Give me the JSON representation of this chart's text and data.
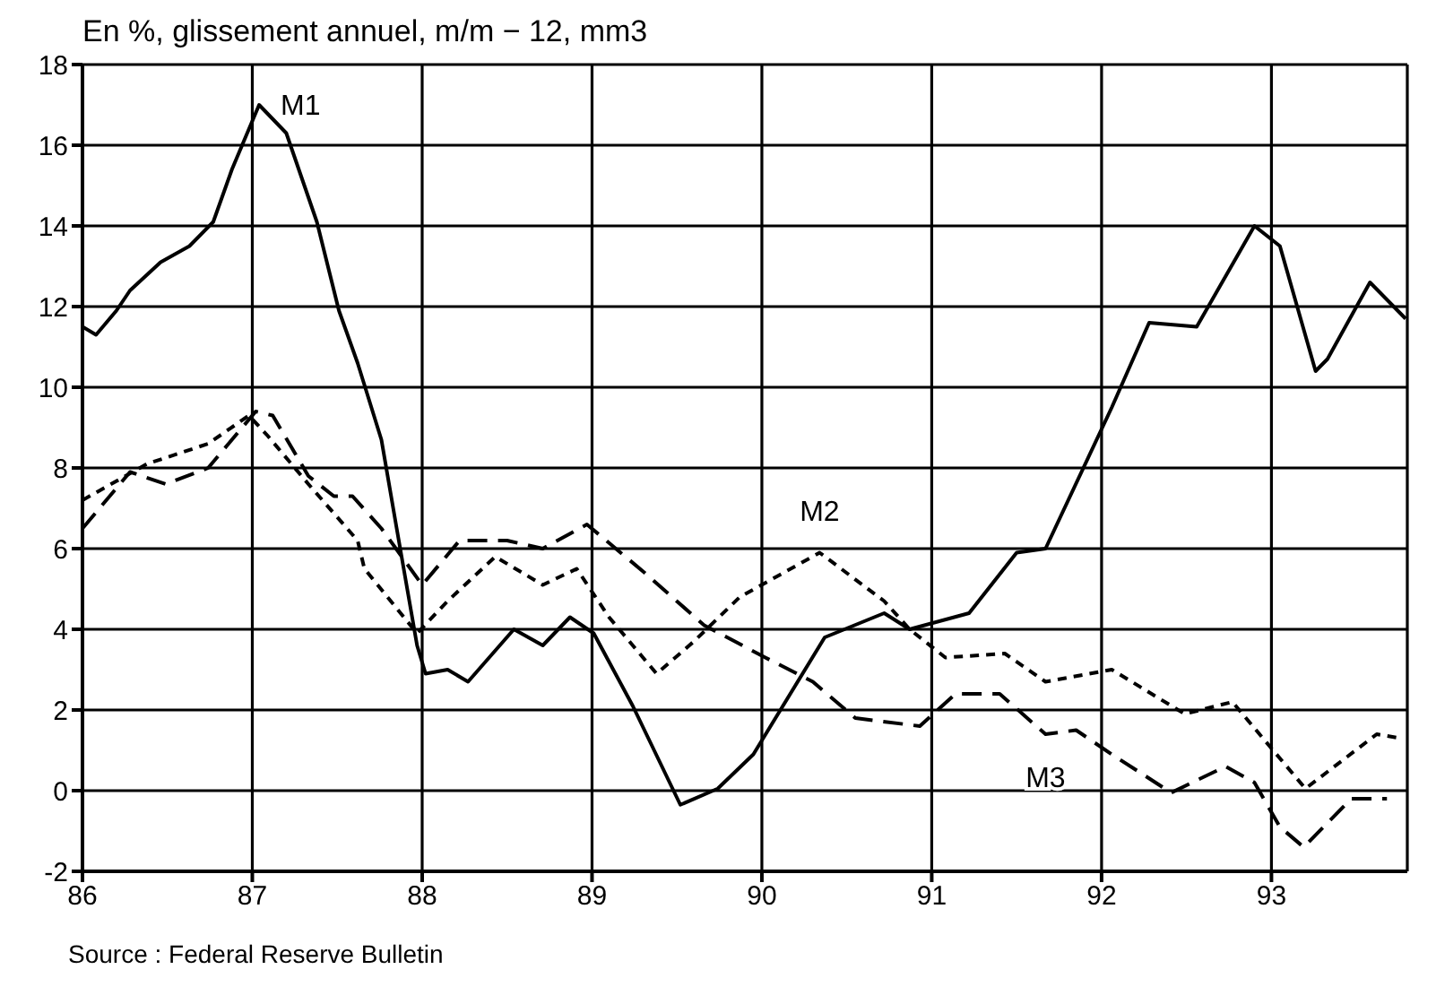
{
  "chart_data": {
    "type": "line",
    "title": "En %, glissement annuel, m/m − 12, mm3",
    "xlim": [
      86,
      93.8
    ],
    "xticks": [
      86,
      87,
      88,
      89,
      90,
      91,
      92,
      93
    ],
    "ylim": [
      -2,
      18
    ],
    "yticks": [
      -2,
      0,
      2,
      4,
      6,
      8,
      10,
      12,
      14,
      16,
      18
    ],
    "grid": true,
    "marker": "none",
    "series": [
      {
        "color": "#000000",
        "line_style": "solid",
        "x": [
          86.0,
          86.08,
          86.2,
          86.28,
          86.46,
          86.63,
          86.77,
          86.88,
          87.04,
          87.2,
          87.38,
          87.51,
          87.62,
          87.76,
          87.85,
          87.97,
          88.02,
          88.15,
          88.27,
          88.54,
          88.71,
          88.87,
          89.01,
          89.24,
          89.52,
          89.74,
          89.95,
          90.37,
          90.72,
          90.87,
          91.22,
          91.5,
          91.67,
          92.06,
          92.28,
          92.56,
          92.9,
          93.05,
          93.26,
          93.33,
          93.58,
          93.79
        ],
        "values": [
          11.5,
          11.3,
          11.9,
          12.4,
          13.1,
          13.5,
          14.1,
          15.4,
          17.0,
          16.3,
          14.1,
          11.9,
          10.6,
          8.7,
          6.5,
          3.6,
          2.9,
          3.0,
          2.7,
          4.0,
          3.6,
          4.3,
          3.9,
          2.1,
          -0.35,
          0.05,
          0.9,
          3.8,
          4.4,
          4.0,
          4.4,
          5.9,
          6.0,
          9.5,
          11.6,
          11.5,
          14.0,
          13.5,
          10.4,
          10.7,
          12.6,
          11.7
        ]
      },
      {
        "color": "#000000",
        "line_style": "dotted",
        "x": [
          86.0,
          86.38,
          86.74,
          86.98,
          87.09,
          87.33,
          87.62,
          87.66,
          87.97,
          88.15,
          88.43,
          88.71,
          88.91,
          89.1,
          89.38,
          89.6,
          89.87,
          90.34,
          90.72,
          90.87,
          91.08,
          91.43,
          91.67,
          92.06,
          92.49,
          92.77,
          93.2,
          93.62,
          93.76
        ],
        "values": [
          7.2,
          8.1,
          8.6,
          9.3,
          8.8,
          7.6,
          6.2,
          5.5,
          3.9,
          4.7,
          5.8,
          5.1,
          5.5,
          4.3,
          2.9,
          3.7,
          4.8,
          5.9,
          4.7,
          4.0,
          3.3,
          3.4,
          2.7,
          3.0,
          1.9,
          2.2,
          0.05,
          1.4,
          1.3
        ]
      },
      {
        "color": "#000000",
        "line_style": "dashed",
        "x": [
          86.0,
          86.28,
          86.49,
          86.74,
          87.02,
          87.12,
          87.33,
          87.48,
          87.59,
          87.76,
          88.0,
          88.22,
          88.5,
          88.71,
          88.97,
          89.31,
          89.66,
          90.02,
          90.3,
          90.55,
          90.93,
          91.14,
          91.4,
          91.67,
          91.85,
          92.06,
          92.41,
          92.73,
          92.9,
          93.05,
          93.19,
          93.47,
          93.68
        ],
        "values": [
          6.5,
          7.9,
          7.6,
          8.0,
          9.4,
          9.3,
          7.8,
          7.3,
          7.3,
          6.5,
          5.1,
          6.2,
          6.2,
          6.0,
          6.6,
          5.4,
          4.1,
          3.3,
          2.7,
          1.8,
          1.6,
          2.4,
          2.4,
          1.4,
          1.5,
          0.9,
          -0.05,
          0.6,
          0.2,
          -0.9,
          -1.4,
          -0.2,
          -0.2
        ]
      }
    ],
    "annotations": [
      {
        "text": "M1",
        "x": 87.04,
        "y": 17.0
      },
      {
        "text": "M2",
        "x": 90.34,
        "y": 5.9
      },
      {
        "text": "M3",
        "x": 91.67,
        "y": 1.4
      },
      "Source : Federal Reserve Bulletin"
    ]
  }
}
